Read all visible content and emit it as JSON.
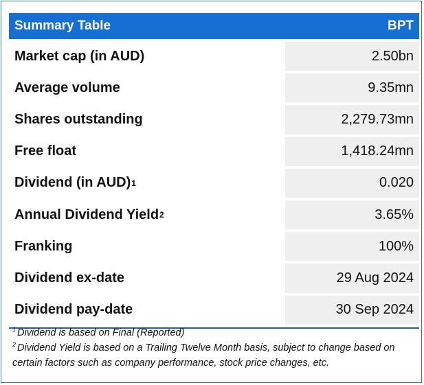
{
  "table": {
    "title": "Summary Table",
    "ticker": "BPT",
    "rows": [
      {
        "label": "Market cap (in AUD)",
        "sup": "",
        "value": "2.50bn"
      },
      {
        "label": "Average volume",
        "sup": "",
        "value": "9.35mn"
      },
      {
        "label": "Shares outstanding",
        "sup": "",
        "value": "2,279.73mn"
      },
      {
        "label": "Free float",
        "sup": "",
        "value": "1,418.24mn"
      },
      {
        "label": "Dividend (in AUD)",
        "sup": "1",
        "value": "0.020"
      },
      {
        "label": "Annual Dividend Yield",
        "sup": "2",
        "value": "3.65%"
      },
      {
        "label": "Franking",
        "sup": "",
        "value": "100%"
      },
      {
        "label": "Dividend ex-date",
        "sup": "",
        "value": "29 Aug 2024"
      },
      {
        "label": "Dividend pay-date",
        "sup": "",
        "value": "30 Sep 2024"
      }
    ]
  },
  "footnotes": [
    {
      "num": "1",
      "text": "Dividend is based on Final (Reported)"
    },
    {
      "num": "2",
      "text": "Dividend Yield is based on a Trailing Twelve Month basis, subject to change based on certain factors such as company performance, stock price changes, etc."
    }
  ]
}
